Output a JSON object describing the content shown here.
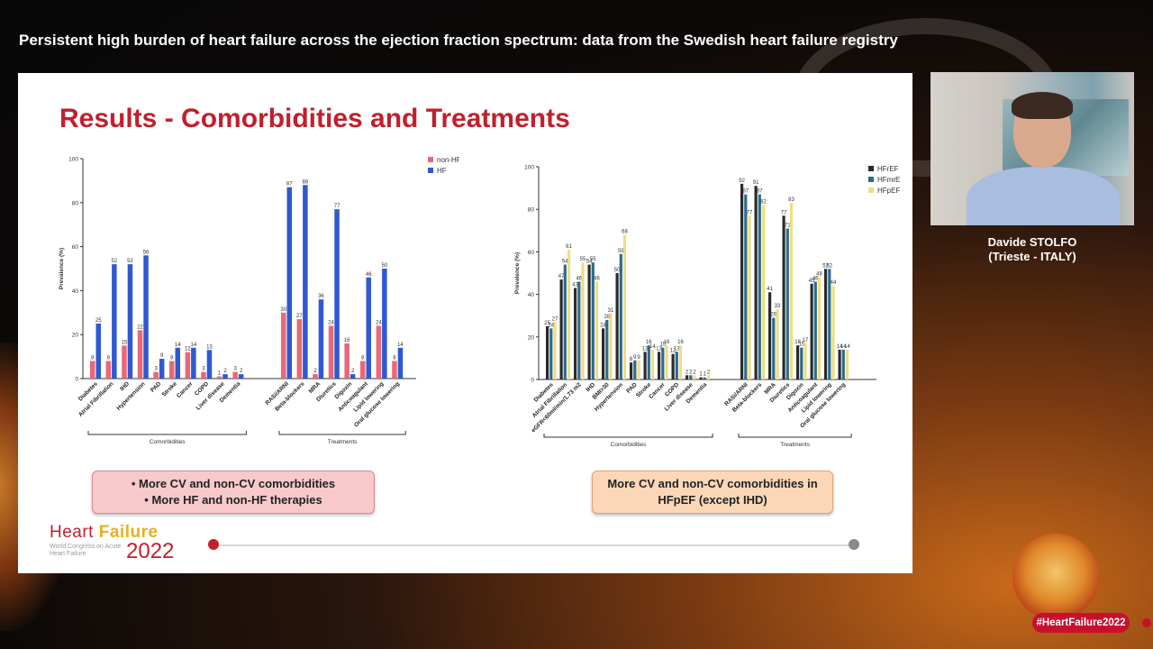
{
  "banner": {
    "title": "Persistent high burden of heart failure across the ejection fraction spectrum: data from the Swedish heart failure registry"
  },
  "slide": {
    "title": "Results - Comorbidities and Treatments",
    "callout_left": [
      "• More CV and non-CV comorbidities",
      "• More HF and non-HF therapies"
    ],
    "callout_right": [
      "More CV and non-CV comorbidities in",
      "HFpEF (except IHD)"
    ],
    "logo": {
      "word1": "Heart ",
      "word2": "Failure",
      "sub": "World Congress on Acute Heart Failure",
      "year": "2022"
    }
  },
  "speaker": {
    "name": "Davide STOLFO",
    "affiliation": "(Trieste - ITALY)"
  },
  "hashtag": "#HeartFailure2022",
  "colors": {
    "nonhf": "#e96876",
    "hf": "#2f58d3",
    "hfref": "#2a2a2a",
    "hfmref": "#2d6a8e",
    "hfpef": "#f0dd80"
  },
  "chart_data": [
    {
      "type": "bar",
      "ylabel": "Prevalence (%)",
      "ylim": [
        0,
        100
      ],
      "yticks": [
        0,
        20,
        40,
        60,
        80,
        100
      ],
      "legend": "top-right",
      "categories": [
        "Diabetes",
        "Atrial Fibrillation",
        "IHD",
        "Hypertension",
        "PAD",
        "Stroke",
        "Cancer",
        "COPD",
        "Liver disease",
        "Dementia",
        "RASi/ARNI",
        "Beta-blockers",
        "MRA",
        "Diuretics",
        "Digoxin",
        "Anticoagulant",
        "Lipid lowering",
        "Oral glucose lowering"
      ],
      "groups": [
        {
          "label": "Comorbidities",
          "start": 0,
          "end": 9
        },
        {
          "label": "Treatments",
          "start": 10,
          "end": 17
        }
      ],
      "series": [
        {
          "name": "non-HF",
          "values": [
            8,
            8,
            15,
            22,
            3,
            8,
            12,
            3,
            1,
            3,
            30,
            27,
            2,
            24,
            16,
            8,
            24,
            8
          ]
        },
        {
          "name": "HF",
          "values": [
            25,
            52,
            52,
            56,
            9,
            14,
            14,
            13,
            2,
            2,
            87,
            88,
            36,
            77,
            2,
            46,
            50,
            14
          ]
        }
      ]
    },
    {
      "type": "bar",
      "ylabel": "Prevalence (%)",
      "ylim": [
        0,
        100
      ],
      "yticks": [
        0,
        20,
        40,
        60,
        80,
        100
      ],
      "legend": "top-right",
      "categories": [
        "Diabetes",
        "Atrial Fibrillation",
        "eGFR<60ml/min/1.73 m2",
        "IHD",
        "BMI>30",
        "Hypertension",
        "PAD",
        "Stroke",
        "Cancer",
        "COPD",
        "Liver disease",
        "Dementia",
        "RASi/ARNI",
        "Beta-blockers",
        "MRA",
        "Diuretics",
        "Digoxin",
        "Anticoagulant",
        "Lipid lowering",
        "Oral glucose lowering"
      ],
      "groups": [
        {
          "label": "Comorbidities",
          "start": 0,
          "end": 11
        },
        {
          "label": "Treatments",
          "start": 12,
          "end": 19
        }
      ],
      "series": [
        {
          "name": "HFrEF",
          "values": [
            25,
            47,
            43,
            54,
            24,
            50,
            8,
            13,
            13,
            12,
            2,
            1,
            92,
            91,
            41,
            77,
            16,
            45,
            52,
            14
          ]
        },
        {
          "name": "HFmrEF",
          "values": [
            24,
            54,
            46,
            55,
            28,
            59,
            9,
            16,
            15,
            13,
            2,
            1,
            87,
            87,
            29,
            71,
            15,
            46,
            52,
            14
          ]
        },
        {
          "name": "HFpEF",
          "values": [
            27,
            61,
            55,
            46,
            31,
            68,
            9,
            14,
            16,
            16,
            2,
            2,
            77,
            82,
            33,
            83,
            17,
            48,
            44,
            14
          ]
        }
      ]
    }
  ]
}
